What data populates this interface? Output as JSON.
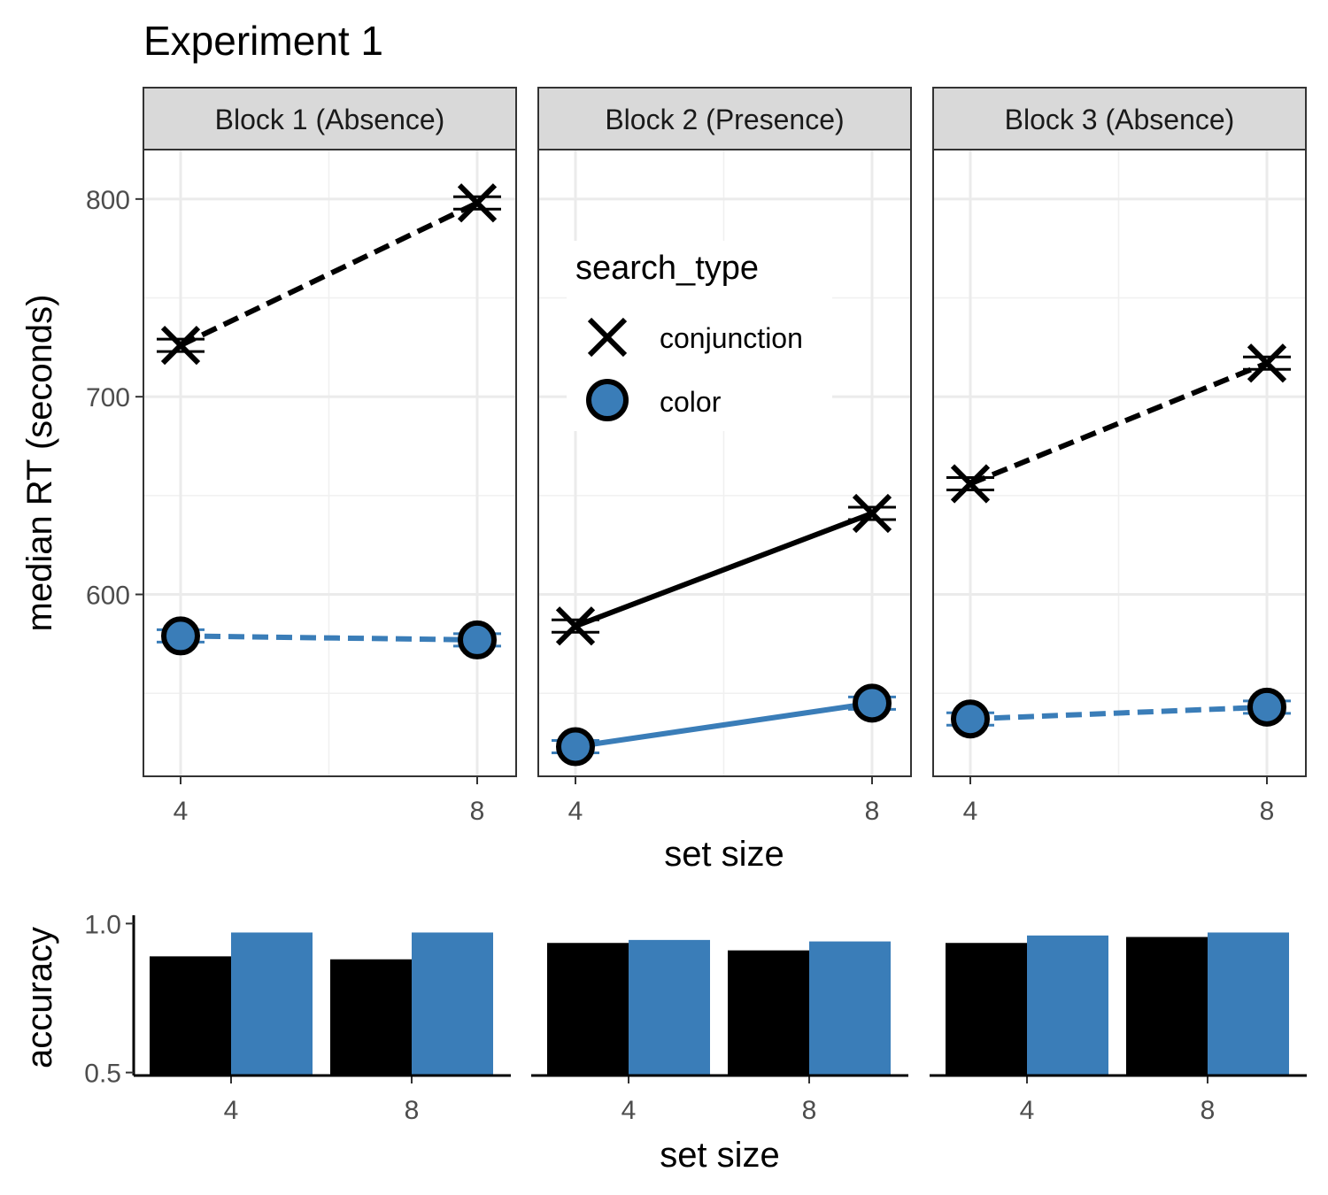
{
  "title": "Experiment 1",
  "colors": {
    "conjunction": "#000000",
    "color": "#3A7DB8"
  },
  "chart_data": [
    {
      "type": "line",
      "title": "Experiment 1",
      "facets": [
        "Block 1 (Absence)",
        "Block 2 (Presence)",
        "Block 3 (Absence)"
      ],
      "xlabel": "set size",
      "ylabel": "median RT (seconds)",
      "x": [
        4,
        8
      ],
      "xticks": [
        "4",
        "8"
      ],
      "yticks": [
        600,
        700,
        800
      ],
      "ytick_labels": [
        "600",
        "700",
        "800"
      ],
      "ylim": [
        508,
        825
      ],
      "legend": {
        "title": "search_type",
        "entries": [
          {
            "key": "conjunction",
            "label": "conjunction",
            "marker": "x-mark"
          },
          {
            "key": "color",
            "label": "color",
            "marker": "filled-circle"
          }
        ],
        "placement": "inside-middle-panel"
      },
      "series": [
        {
          "facet": 0,
          "search_type": "conjunction",
          "linestyle": "dashed",
          "values": [
            726,
            798
          ]
        },
        {
          "facet": 0,
          "search_type": "color",
          "linestyle": "dashed",
          "values": [
            579,
            577
          ]
        },
        {
          "facet": 1,
          "search_type": "conjunction",
          "linestyle": "solid",
          "values": [
            584,
            641
          ]
        },
        {
          "facet": 1,
          "search_type": "color",
          "linestyle": "solid",
          "values": [
            523,
            545
          ]
        },
        {
          "facet": 2,
          "search_type": "conjunction",
          "linestyle": "dashed",
          "values": [
            656,
            717
          ]
        },
        {
          "facet": 2,
          "search_type": "color",
          "linestyle": "dashed",
          "values": [
            537,
            543
          ]
        }
      ],
      "grid": true
    },
    {
      "type": "bar",
      "xlabel": "set size",
      "ylabel": "accuracy",
      "categories": [
        "4",
        "8"
      ],
      "yticks": [
        0.5,
        1.0
      ],
      "ytick_labels": [
        "0.5",
        "1.0"
      ],
      "ylim": [
        0.49,
        1.01
      ],
      "series": [
        {
          "facet": 0,
          "search_type": "conjunction",
          "values": [
            0.89,
            0.88
          ]
        },
        {
          "facet": 0,
          "search_type": "color",
          "values": [
            0.97,
            0.97
          ]
        },
        {
          "facet": 1,
          "search_type": "conjunction",
          "values": [
            0.935,
            0.91
          ]
        },
        {
          "facet": 1,
          "search_type": "color",
          "values": [
            0.945,
            0.94
          ]
        },
        {
          "facet": 2,
          "search_type": "conjunction",
          "values": [
            0.935,
            0.955
          ]
        },
        {
          "facet": 2,
          "search_type": "color",
          "values": [
            0.96,
            0.97
          ]
        }
      ],
      "grid": false
    }
  ]
}
